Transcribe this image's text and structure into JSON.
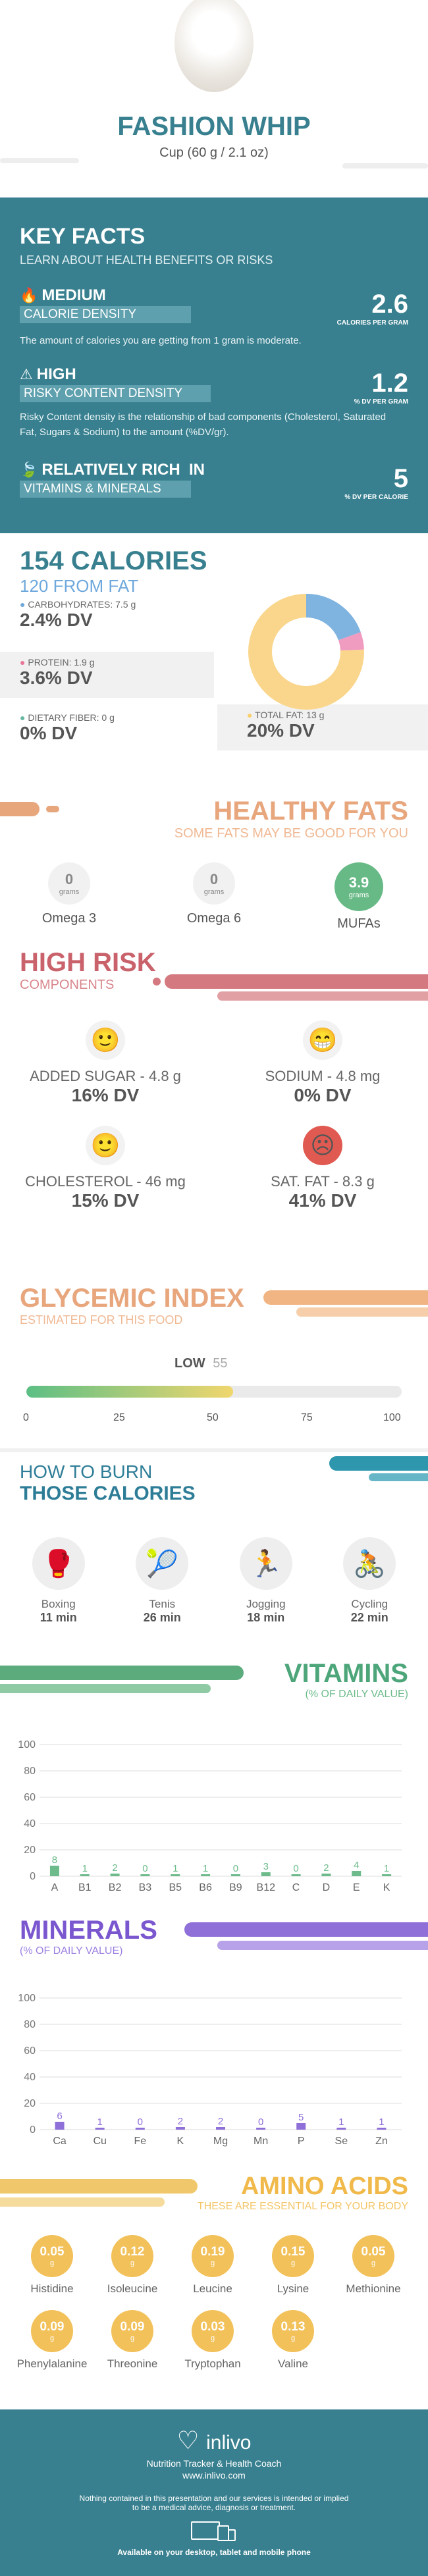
{
  "header": {
    "title": "FASHION WHIP",
    "serving": "Cup (60 g / 2.1 oz)"
  },
  "key_facts": {
    "title": "KEY FACTS",
    "subtitle": "LEARN ABOUT HEALTH BENEFITS OR RISKS",
    "items": [
      {
        "level": "MEDIUM",
        "label": "CALORIE DENSITY",
        "value": "2.6",
        "unit": "CALORIES PER GRAM",
        "desc": "The amount of calories you are getting from 1 gram is moderate."
      },
      {
        "level": "HIGH",
        "label": "RISKY CONTENT DENSITY",
        "value": "1.2",
        "unit": "% DV PER GRAM",
        "desc": "Risky Content density is the relationship of bad components (Cholesterol, Saturated Fat, Sugars & Sodium) to the amount (%DV/gr)."
      },
      {
        "level": "RELATIVELY RICH  IN",
        "label": "VITAMINS & MINERALS",
        "value": "5",
        "unit": "% DV PER CALORIE",
        "desc": ""
      }
    ]
  },
  "calories": {
    "title": "154 CALORIES",
    "from_fat": "120 FROM FAT",
    "items": [
      {
        "label": "CARBOHYDRATES: 7.5 g",
        "dv": "2.4% DV",
        "color": "#6fa8dc"
      },
      {
        "label": "PROTEIN: 1.9 g",
        "dv": "3.6% DV",
        "color": "#e8779a"
      },
      {
        "label": "DIETARY FIBER: 0 g",
        "dv": "0% DV",
        "color": "#67b7a1"
      },
      {
        "label": "TOTAL FAT: 13 g",
        "dv": "20% DV",
        "color": "#f8cf6a"
      }
    ],
    "donut": [
      {
        "name": "carbs",
        "value": 19.5,
        "color": "#7fb3e0"
      },
      {
        "name": "protein",
        "value": 4.9,
        "color": "#f09bc0"
      },
      {
        "name": "fat",
        "value": 75.6,
        "color": "#f9d68b"
      }
    ]
  },
  "healthy_fats": {
    "title": "HEALTHY FATS",
    "subtitle": "SOME FATS MAY BE GOOD FOR YOU",
    "items": [
      {
        "value": "0",
        "unit": "grams",
        "label": "Omega 3"
      },
      {
        "value": "0",
        "unit": "grams",
        "label": "Omega 6"
      },
      {
        "value": "3.9",
        "unit": "grams",
        "label": "MUFAs"
      }
    ]
  },
  "high_risk": {
    "title": "HIGH RISK",
    "subtitle": "COMPONENTS",
    "items": [
      {
        "label": "ADDED SUGAR - 4.8 g",
        "dv": "16% DV",
        "face": "happy"
      },
      {
        "label": "SODIUM - 4.8 mg",
        "dv": "0% DV",
        "face": "grin"
      },
      {
        "label": "CHOLESTEROL - 46 mg",
        "dv": "15% DV",
        "face": "happy"
      },
      {
        "label": "SAT. FAT - 8.3 g",
        "dv": "41% DV",
        "face": "sad"
      }
    ]
  },
  "glycemic": {
    "title": "GLYCEMIC INDEX",
    "subtitle": "ESTIMATED FOR THIS FOOD",
    "level": "LOW",
    "value": 55,
    "ticks": [
      "0",
      "25",
      "50",
      "75",
      "100"
    ]
  },
  "burn": {
    "title1": "HOW TO BURN",
    "title2": "THOSE CALORIES",
    "items": [
      {
        "label": "Boxing",
        "time": "11 min",
        "icon": "boxing-icon"
      },
      {
        "label": "Tenis",
        "time": "26 min",
        "icon": "tennis-icon"
      },
      {
        "label": "Jogging",
        "time": "18 min",
        "icon": "jogging-icon"
      },
      {
        "label": "Cycling",
        "time": "22 min",
        "icon": "cycling-icon"
      }
    ]
  },
  "chart_data": [
    {
      "type": "bar",
      "title": "VITAMINS",
      "subtitle": "(% OF DAILY VALUE)",
      "categories": [
        "A",
        "B1",
        "B2",
        "B3",
        "B5",
        "B6",
        "B9",
        "B12",
        "C",
        "D",
        "E",
        "K"
      ],
      "values": [
        8,
        1,
        2,
        0,
        1,
        1,
        0,
        3,
        0,
        2,
        4,
        1
      ],
      "ylim": [
        0,
        100
      ],
      "yticks": [
        0,
        20,
        40,
        60,
        80,
        100
      ],
      "color": "#6dbb8b"
    },
    {
      "type": "bar",
      "title": "MINERALS",
      "subtitle": "(% OF DAILY VALUE)",
      "categories": [
        "Ca",
        "Cu",
        "Fe",
        "K",
        "Mg",
        "Mn",
        "P",
        "Se",
        "Zn"
      ],
      "values": [
        6,
        1,
        0,
        2,
        2,
        0,
        5,
        1,
        1
      ],
      "ylim": [
        0,
        100
      ],
      "yticks": [
        0,
        20,
        40,
        60,
        80,
        100
      ],
      "color": "#8f6fd8"
    }
  ],
  "amino": {
    "title": "AMINO ACIDS",
    "subtitle": "THESE ARE ESSENTIAL FOR YOUR BODY",
    "unit": "g",
    "items": [
      {
        "value": "0.05",
        "label": "Histidine"
      },
      {
        "value": "0.12",
        "label": "Isoleucine"
      },
      {
        "value": "0.19",
        "label": "Leucine"
      },
      {
        "value": "0.15",
        "label": "Lysine"
      },
      {
        "value": "0.05",
        "label": "Methionine"
      },
      {
        "value": "0.09",
        "label": "Phenylalanine"
      },
      {
        "value": "0.09",
        "label": "Threonine"
      },
      {
        "value": "0.03",
        "label": "Tryptophan"
      },
      {
        "value": "0.13",
        "label": "Valine"
      }
    ]
  },
  "footer": {
    "brand": "inlivo",
    "tagline": "Nutrition Tracker & Health Coach",
    "url": "www.inlivo.com",
    "disclaimer1": "Nothing contained in this presentation and our services is intended or implied",
    "disclaimer2": "to be a medical advice, diagnosis or treatment.",
    "available": "Available on your desktop, tablet and mobile phone"
  }
}
